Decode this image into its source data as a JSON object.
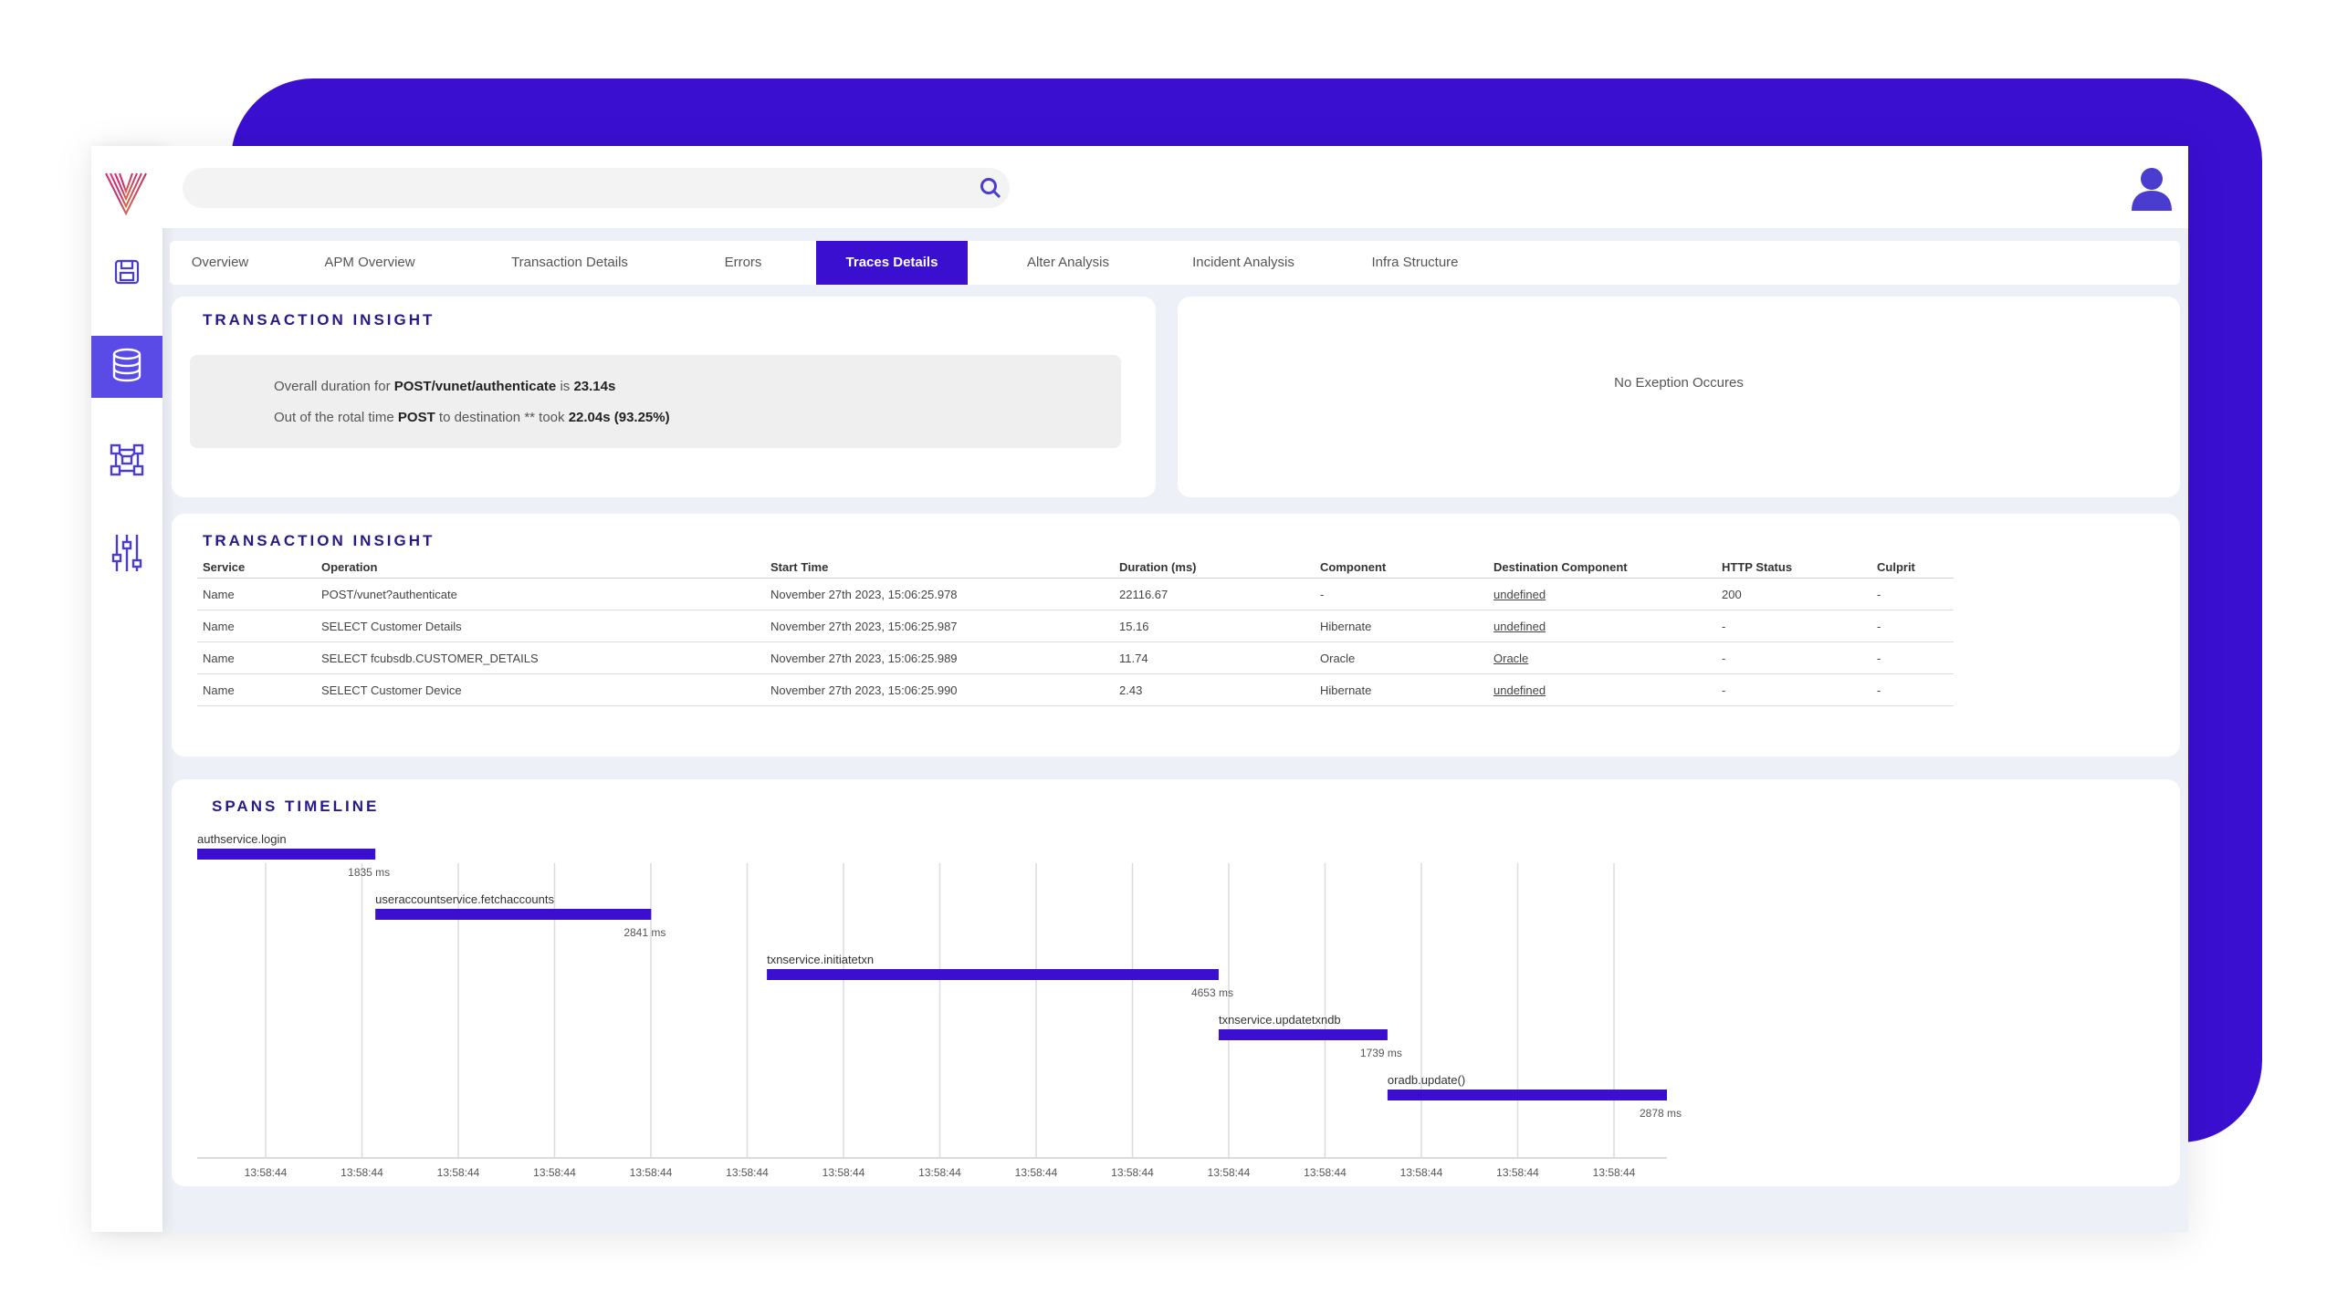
{
  "search": {
    "placeholder": ""
  },
  "sidebar": {
    "items": [
      {
        "name": "logo-icon"
      },
      {
        "name": "save-icon"
      },
      {
        "name": "database-icon",
        "active": true
      },
      {
        "name": "network-icon"
      },
      {
        "name": "sliders-icon"
      }
    ]
  },
  "tabs": [
    {
      "label": "Overview"
    },
    {
      "label": "APM Overview"
    },
    {
      "label": "Transaction Details"
    },
    {
      "label": "Errors"
    },
    {
      "label": "Traces Details",
      "active": true
    },
    {
      "label": "Alter Analysis"
    },
    {
      "label": "Incident Analysis"
    },
    {
      "label": "Infra Structure"
    }
  ],
  "insight_top": {
    "title": "TRANSACTION INSIGHT",
    "line1": {
      "prefix": "Overall duration for ",
      "endpoint": "POST/vunet/authenticate",
      "mid": " is ",
      "duration": "23.14s"
    },
    "line2": {
      "prefix": "Out of the rotal time ",
      "method": "POST",
      "mid": " to destination ** took ",
      "value": "22.04s (93.25%)"
    }
  },
  "exception": {
    "text": "No Exeption Occures"
  },
  "insight_table": {
    "title": "TRANSACTION INSIGHT",
    "columns": [
      "Service",
      "Operation",
      "Start Time",
      "Duration (ms)",
      "Component",
      "Destination Component",
      "HTTP Status",
      "Culprit"
    ],
    "rows": [
      [
        "Name",
        "POST/vunet?authenticate",
        "November 27th 2023, 15:06:25.978",
        "22116.67",
        "-",
        "undefined",
        "200",
        "-"
      ],
      [
        "Name",
        "SELECT Customer Details",
        "November 27th 2023, 15:06:25.987",
        "15.16",
        "Hibernate",
        "undefined",
        "-",
        "-"
      ],
      [
        "Name",
        "SELECT fcubsdb.CUSTOMER_DETAILS",
        "November 27th 2023, 15:06:25.989",
        "11.74",
        "Oracle",
        "Oracle",
        "-",
        "-"
      ],
      [
        "Name",
        "SELECT Customer Device",
        "November 27th 2023, 15:06:25.990",
        "2.43",
        "Hibernate",
        "undefined",
        "-",
        "-"
      ]
    ]
  },
  "spans": {
    "title": "SPANS TIMELINE",
    "bar_color": "#3a0fd0",
    "tick_labels": [
      "13:58:44",
      "13:58:44",
      "13:58:44",
      "13:58:44",
      "13:58:44",
      "13:58:44",
      "13:58:44",
      "13:58:44",
      "13:58:44",
      "13:58:44",
      "13:58:44",
      "13:58:44",
      "13:58:44",
      "13:58:44",
      "13:58:44"
    ],
    "items": [
      {
        "name": "authservice.login",
        "start": 0,
        "duration": 1835,
        "label": "1835 ms"
      },
      {
        "name": "useraccountservice.fetchaccounts",
        "start": 1835,
        "duration": 2841,
        "label": "2841 ms"
      },
      {
        "name": "txnservice.initiatetxn",
        "start": 5868,
        "duration": 4653,
        "label": "4653 ms"
      },
      {
        "name": "txnservice.updatetxndb",
        "start": 10521,
        "duration": 1739,
        "label": "1739 ms"
      },
      {
        "name": "oradb.update()",
        "start": 12260,
        "duration": 2878,
        "label": "2878 ms"
      }
    ]
  }
}
